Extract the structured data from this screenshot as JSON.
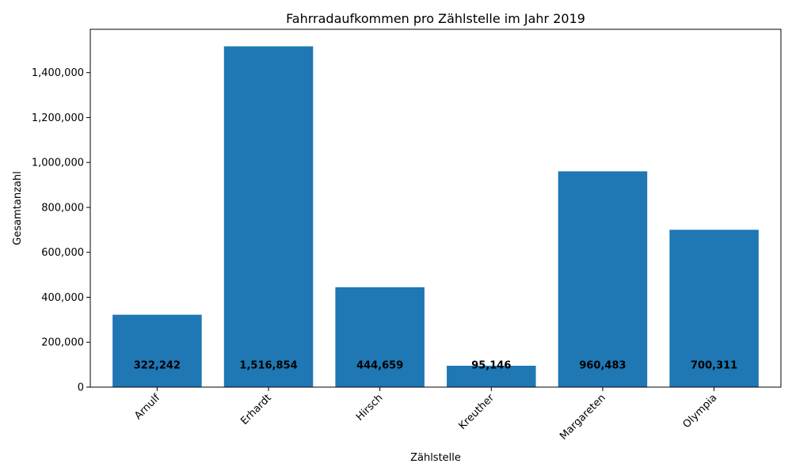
{
  "chart_data": {
    "type": "bar",
    "title": "Fahrradaufkommen pro Zählstelle im Jahr 2019",
    "xlabel": "Zählstelle",
    "ylabel": "Gesamtanzahl",
    "categories": [
      "Arnulf",
      "Erhardt",
      "Hirsch",
      "Kreuther",
      "Margareten",
      "Olympia"
    ],
    "values": [
      322242,
      1516854,
      444659,
      95146,
      960483,
      700311
    ],
    "data_labels": [
      "322,242",
      "1,516,854",
      "444,659",
      "95,146",
      "960,483",
      "700,311"
    ],
    "yticks": [
      0,
      200000,
      400000,
      600000,
      800000,
      1000000,
      1200000,
      1400000
    ],
    "ytick_labels": [
      "0",
      "200,000",
      "400,000",
      "600,000",
      "800,000",
      "1,000,000",
      "1,200,000",
      "1,400,000"
    ],
    "ylim": [
      0,
      1592697
    ],
    "grid": false,
    "legend": "none",
    "bar_color": "#1f77b4",
    "data_label_anchor_value": 100000
  }
}
